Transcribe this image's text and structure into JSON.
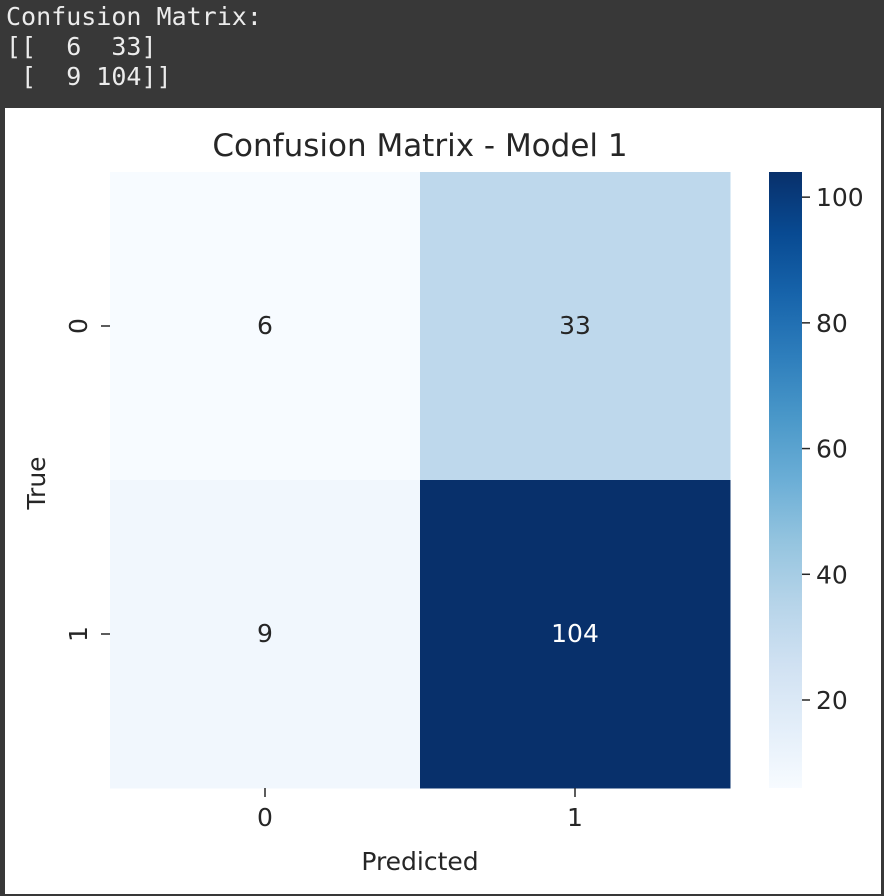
{
  "console": {
    "lines": [
      "Confusion Matrix:",
      "[[  6  33]",
      " [  9 104]]"
    ]
  },
  "chart_data": {
    "type": "heatmap",
    "title": "Confusion Matrix - Model 1",
    "xlabel": "Predicted",
    "ylabel": "True",
    "x_categories": [
      "0",
      "1"
    ],
    "y_categories": [
      "0",
      "1"
    ],
    "values": [
      [
        6,
        33
      ],
      [
        9,
        104
      ]
    ],
    "colormap": "Blues",
    "colorbar": {
      "vmin": 6,
      "vmax": 104,
      "ticks": [
        20,
        40,
        60,
        80,
        100
      ]
    }
  }
}
